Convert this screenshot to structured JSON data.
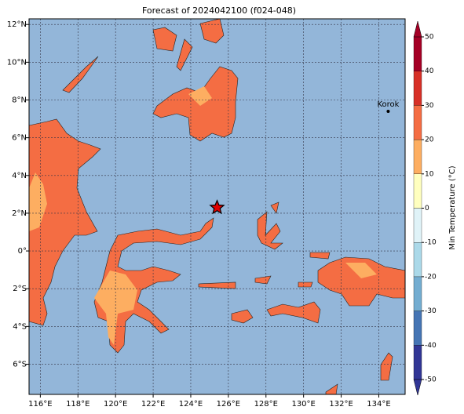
{
  "map": {
    "title": "Forecast of 2024042100 (f024-048)",
    "xlim": [
      115.4,
      135.4
    ],
    "ylim": [
      -7.6,
      12.3
    ],
    "xticks": [
      {
        "value": 116,
        "label": "116°E"
      },
      {
        "value": 118,
        "label": "118°E"
      },
      {
        "value": 120,
        "label": "120°E"
      },
      {
        "value": 122,
        "label": "122°E"
      },
      {
        "value": 124,
        "label": "124°E"
      },
      {
        "value": 126,
        "label": "126°E"
      },
      {
        "value": 128,
        "label": "128°E"
      },
      {
        "value": 130,
        "label": "130°E"
      },
      {
        "value": 132,
        "label": "132°E"
      },
      {
        "value": 134,
        "label": "134°E"
      }
    ],
    "yticks": [
      {
        "value": 12,
        "label": "12°N"
      },
      {
        "value": 10,
        "label": "10°N"
      },
      {
        "value": 8,
        "label": "8°N"
      },
      {
        "value": 6,
        "label": "6°N"
      },
      {
        "value": 4,
        "label": "4°N"
      },
      {
        "value": 2,
        "label": "2°N"
      },
      {
        "value": 0,
        "label": "0°"
      },
      {
        "value": -2,
        "label": "2°S"
      },
      {
        "value": -4,
        "label": "4°S"
      },
      {
        "value": -6,
        "label": "6°S"
      }
    ],
    "grid": true,
    "star": {
      "lon": 125.4,
      "lat": 2.3,
      "color": "#e00000"
    },
    "station": {
      "name": "Korok",
      "lon": 134.5,
      "lat": 7.4
    },
    "colorbar": {
      "label": "Min Temperature (°C)",
      "ticks": [
        -50,
        -40,
        -30,
        -20,
        -10,
        0,
        10,
        20,
        30,
        40,
        50
      ],
      "colors": [
        "#313695",
        "#4575b4",
        "#74add1",
        "#abd9e9",
        "#e0f3f8",
        "#ffffbf",
        "#fdae61",
        "#f46d43",
        "#d73027",
        "#a50026"
      ]
    }
  }
}
